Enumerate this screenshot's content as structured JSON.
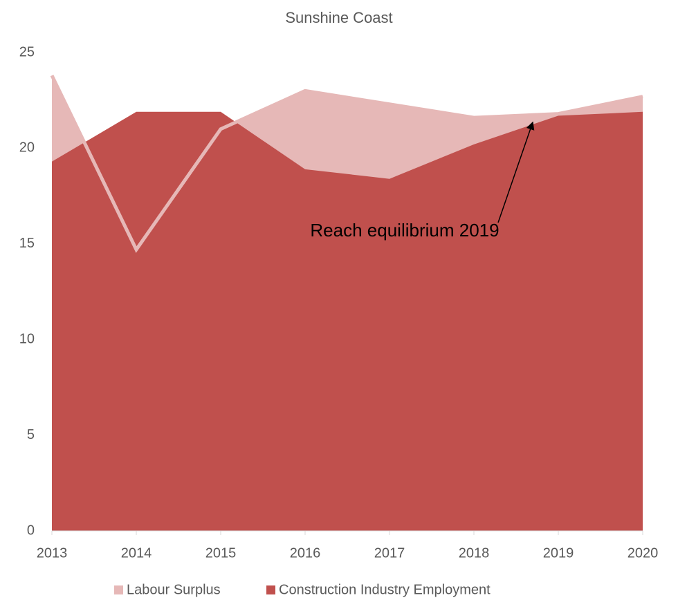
{
  "chart_data": {
    "type": "area",
    "title": "Sunshine Coast",
    "categories": [
      "2013",
      "2014",
      "2015",
      "2016",
      "2017",
      "2018",
      "2019",
      "2020"
    ],
    "series": [
      {
        "name": "Labour Surplus",
        "color": "#e6b8b7",
        "values": [
          23.8,
          14.7,
          21.0,
          23.0,
          22.3,
          21.6,
          21.8,
          22.7
        ]
      },
      {
        "name": "Construction Industry Employment",
        "color": "#c0504d",
        "values": [
          19.3,
          21.9,
          21.9,
          18.9,
          18.4,
          20.2,
          21.7,
          21.9
        ]
      }
    ],
    "ylim": [
      0,
      25
    ],
    "yticks": [
      0,
      5,
      10,
      15,
      20,
      25
    ],
    "grid": false,
    "legend": "bottom",
    "annotations": [
      "Reach equilibrium 2019"
    ]
  }
}
